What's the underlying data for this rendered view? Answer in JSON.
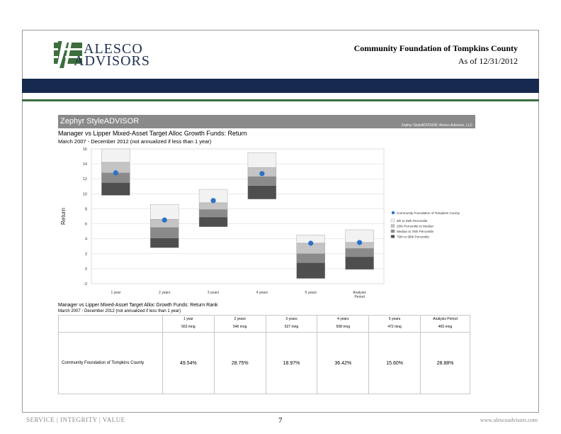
{
  "header": {
    "logo_line1": "ALESCO",
    "logo_line2": "ADVISORS",
    "title": "Community Foundation of Tompkins County",
    "date": "As of 12/31/2012"
  },
  "report": {
    "brand": "Zephyr StyleADVISOR",
    "copyright": "Zephyr StyleADVISOR: Alesco Advisors, LLC"
  },
  "chart_data": {
    "type": "floating-bar",
    "title": "Manager vs Lipper Mixed-Asset Target Alloc Growth Funds: Return",
    "subtitle": "March 2007 - December 2012 (not annualized if less than 1 year)",
    "ylabel": "Return",
    "ylim": [
      -2,
      16
    ],
    "yticks": [
      -2,
      0,
      2,
      4,
      6,
      8,
      10,
      12,
      14,
      16
    ],
    "categories": [
      "1 year",
      "2 years",
      "3 years",
      "4 years",
      "5 years",
      "Analysis Period"
    ],
    "percentile_bands": [
      {
        "name": "5th to 25th Percentile",
        "color": "#f2f2f2",
        "values": [
          [
            14.2,
            16.0
          ],
          [
            6.6,
            8.6
          ],
          [
            8.8,
            10.6
          ],
          [
            13.5,
            15.5
          ],
          [
            3.4,
            4.5
          ],
          [
            3.5,
            5.2
          ]
        ]
      },
      {
        "name": "25th Percentile to Median",
        "color": "#c4c4c4",
        "values": [
          [
            12.8,
            14.2
          ],
          [
            5.5,
            6.6
          ],
          [
            7.9,
            8.8
          ],
          [
            12.3,
            13.5
          ],
          [
            2.0,
            3.4
          ],
          [
            2.7,
            3.5
          ]
        ]
      },
      {
        "name": "Median to 75th Percentile",
        "color": "#8a8a8a",
        "values": [
          [
            11.5,
            12.8
          ],
          [
            4.1,
            5.5
          ],
          [
            6.9,
            7.9
          ],
          [
            11.1,
            12.3
          ],
          [
            0.8,
            2.0
          ],
          [
            1.6,
            2.7
          ]
        ]
      },
      {
        "name": "75th to 95th Percentile",
        "color": "#4e4e4e",
        "values": [
          [
            9.8,
            11.5
          ],
          [
            2.8,
            4.1
          ],
          [
            5.6,
            6.9
          ],
          [
            9.3,
            11.1
          ],
          [
            -1.3,
            0.8
          ],
          [
            -0.1,
            1.6
          ]
        ]
      }
    ],
    "manager": {
      "name": "Community Foundation of Tompkins County",
      "color": "#2a73c4",
      "values": [
        12.8,
        6.5,
        9.1,
        12.7,
        3.4,
        3.5
      ]
    }
  },
  "rank_table": {
    "title": "Manager vs Lipper Mixed-Asset Target Alloc Growth Funds: Return Rank",
    "subtitle": "March 2007 - December 2012 (not annualized if less than 1 year)",
    "columns": [
      "1 year",
      "2 years",
      "3 years",
      "4 years",
      "5 years",
      "Analysis Period"
    ],
    "counts": [
      "563 mng",
      "546 mng",
      "527 mng",
      "508 mng",
      "472 mng",
      "465 mng"
    ],
    "row_label": "Community Foundation of Tompkins County",
    "values": [
      "49.54%",
      "28.75%",
      "18.97%",
      "36.42%",
      "15.60%",
      "28.88%"
    ]
  },
  "footer": {
    "tagline": "SERVICE | INTEGRITY | VALUE",
    "page_number": "7",
    "website": "www.alescoadvisors.com"
  },
  "colors": {
    "navy": "#162a4f",
    "green": "#3d6e3e",
    "gray_bar": "#8a8a8a"
  }
}
